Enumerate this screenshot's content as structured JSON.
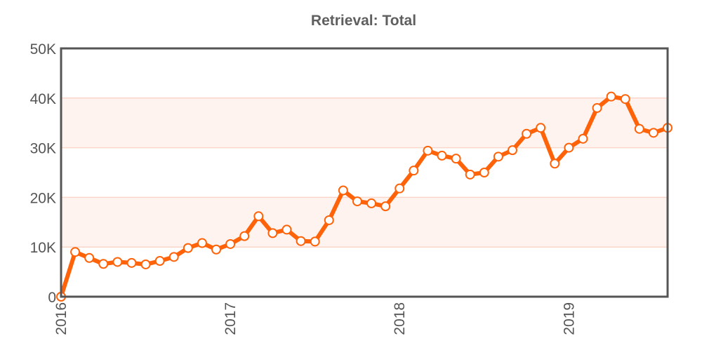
{
  "chart_data": {
    "type": "line",
    "title": "Retrieval: Total",
    "xlabel": "",
    "ylabel": "",
    "xlim": [
      2016.0,
      2019.5833
    ],
    "ylim": [
      0,
      50000
    ],
    "x_ticks": [
      "2016",
      "2017",
      "2018",
      "2019"
    ],
    "y_ticks": [
      "0",
      "10K",
      "20K",
      "30K",
      "40K",
      "50K"
    ],
    "grid": "alternating horizontal bands",
    "legend": "none",
    "colors": {
      "line": "#ff6309",
      "marker_fill": "#ffffff",
      "band": "#fff3f0",
      "gridline": "#fbd6c8",
      "frame": "#555555"
    },
    "series": [
      {
        "x": [
          "2016-01",
          "2016-02",
          "2016-03",
          "2016-04",
          "2016-05",
          "2016-06",
          "2016-07",
          "2016-08",
          "2016-09",
          "2016-10",
          "2016-11",
          "2016-12",
          "2017-01",
          "2017-02",
          "2017-03",
          "2017-04",
          "2017-05",
          "2017-06",
          "2017-07",
          "2017-08",
          "2017-09",
          "2017-10",
          "2017-11",
          "2017-12",
          "2018-01",
          "2018-02",
          "2018-03",
          "2018-04",
          "2018-05",
          "2018-06",
          "2018-07",
          "2018-08",
          "2018-09",
          "2018-10",
          "2018-11",
          "2018-12",
          "2019-01",
          "2019-02",
          "2019-03",
          "2019-04",
          "2019-05",
          "2019-06",
          "2019-07",
          "2019-08"
        ],
        "values": [
          0,
          9000,
          7800,
          6600,
          7000,
          6800,
          6500,
          7200,
          8000,
          9800,
          10800,
          9500,
          10600,
          12200,
          16200,
          12800,
          13500,
          11200,
          11100,
          15400,
          21400,
          19200,
          18800,
          18200,
          21800,
          25400,
          29400,
          28400,
          27800,
          24600,
          25000,
          28200,
          29500,
          32800,
          34000,
          26800,
          30000,
          31800,
          38000,
          40300,
          39800,
          33800,
          33000,
          34000
        ]
      }
    ]
  }
}
